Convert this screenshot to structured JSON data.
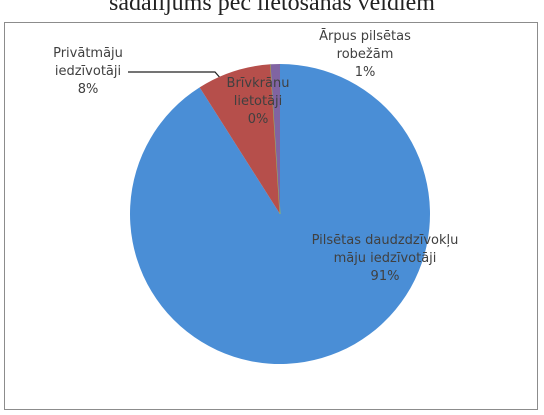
{
  "chart_data": {
    "type": "pie",
    "title": "sadalījums pēc lietošanas veidiem",
    "categories": [
      "Pilsētas daudzdzīvokļu māju iedzīvotāji",
      "Privātmāju iedzīvotāji",
      "Brīvkrānu lietotāji",
      "Ārpus pilsētas robežām"
    ],
    "values": [
      91,
      8,
      0,
      1
    ],
    "value_labels": [
      "91%",
      "8%",
      "0%",
      "1%"
    ],
    "colors": [
      "#4a8ed6",
      "#b64f4b",
      "#9bbb59",
      "#8064a2"
    ]
  }
}
